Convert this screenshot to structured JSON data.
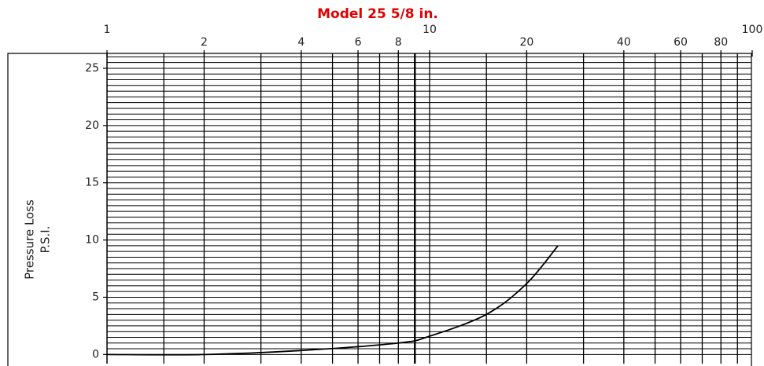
{
  "chart_data": {
    "type": "line",
    "title": "Model 25 5/8 in.",
    "ylabel": [
      "Pressure Loss",
      "P.S.I."
    ],
    "x": [
      1,
      2,
      4,
      8,
      10,
      15,
      20,
      25
    ],
    "series": [
      {
        "color": "#000000",
        "values": [
          0,
          0,
          0.35,
          1.0,
          1.6,
          3.5,
          6.2,
          9.5
        ]
      }
    ],
    "xscale": "log",
    "xlim": [
      1,
      100
    ],
    "xticks": [
      1,
      2,
      4,
      6,
      8,
      10,
      20,
      40,
      60,
      80,
      100
    ],
    "xgrid": [
      1.5,
      2,
      3,
      4,
      5,
      6,
      7,
      8,
      9,
      10,
      15,
      20,
      30,
      40,
      50,
      60,
      70,
      80,
      90
    ],
    "ylim": [
      -0.8,
      26.3
    ],
    "yticks": [
      0,
      5,
      10,
      15,
      20,
      25
    ],
    "ygrid": [
      0,
      0.5,
      1,
      1.5,
      2,
      2.5,
      3,
      3.5,
      4,
      4.5,
      5,
      5.5,
      6,
      6.5,
      7,
      7.5,
      8,
      8.5,
      9,
      9.5,
      10,
      10.5,
      11,
      11.5,
      12,
      12.5,
      13,
      13.5,
      14,
      14.5,
      15,
      15.5,
      16,
      16.5,
      17,
      17.5,
      18,
      18.5,
      19,
      19.5,
      20,
      20.5,
      21,
      21.5,
      22,
      22.5,
      23,
      23.5,
      24,
      24.5,
      25,
      25.5,
      26
    ],
    "title_color": "#e00000"
  }
}
